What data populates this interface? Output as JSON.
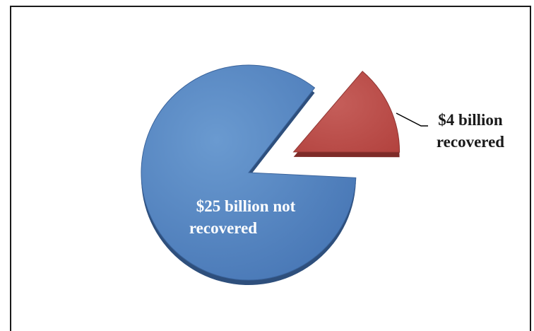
{
  "chart_data": {
    "type": "pie",
    "title": "",
    "slices": [
      {
        "label": "$25 billion not recovered",
        "value": 25,
        "color": "#4f81bd",
        "exploded": false
      },
      {
        "label": "$4 billion recovered",
        "value": 4,
        "color": "#c0504d",
        "exploded": true
      }
    ],
    "legend": "none",
    "style": "3d-exploded"
  },
  "labels": {
    "not_recovered_line1": "$25 billion not",
    "not_recovered_line2": "recovered",
    "recovered_line1": "$4 billion",
    "recovered_line2": "recovered"
  }
}
